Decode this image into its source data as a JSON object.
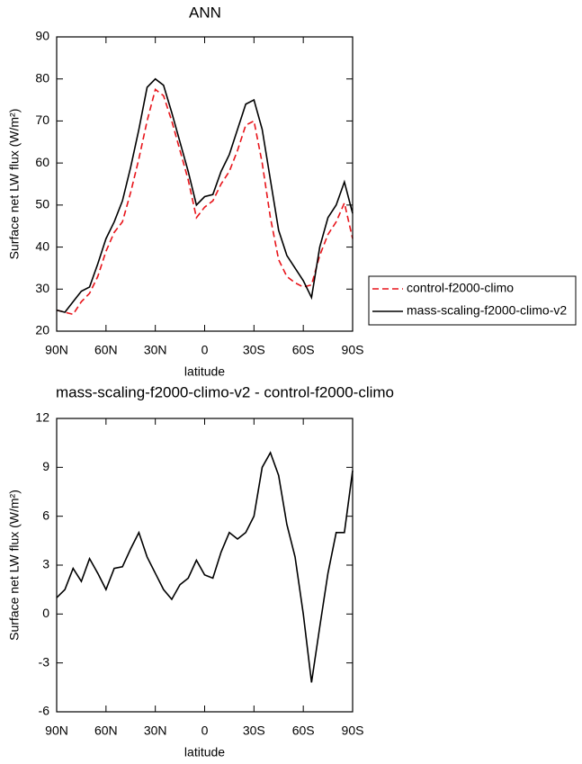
{
  "chart_data": [
    {
      "type": "line",
      "title": "ANN",
      "x_label": "latitude",
      "y_label": "Surface net LW flux (W/m²)",
      "x": [
        90,
        85,
        80,
        75,
        70,
        65,
        60,
        55,
        50,
        45,
        40,
        35,
        30,
        25,
        20,
        15,
        10,
        5,
        0,
        -5,
        -10,
        -15,
        -20,
        -25,
        -30,
        -35,
        -40,
        -45,
        -50,
        -55,
        -60,
        -65,
        -70,
        -75,
        -80,
        -85,
        -90
      ],
      "xlim": [
        90,
        -90
      ],
      "xticks": [
        {
          "value": 90,
          "label": "90N"
        },
        {
          "value": 60,
          "label": "60N"
        },
        {
          "value": 30,
          "label": "30N"
        },
        0,
        {
          "value": -30,
          "label": "30S"
        },
        {
          "value": -60,
          "label": "60S"
        },
        {
          "value": -90,
          "label": "90S"
        }
      ],
      "ylim": [
        20,
        90
      ],
      "yticks": [
        20,
        30,
        40,
        50,
        60,
        70,
        80,
        90
      ],
      "legend": "right",
      "series": [
        {
          "name": "control-f2000-climo",
          "color": "#e8141a",
          "dashed": true,
          "values": [
            25,
            24.5,
            24,
            27,
            29,
            33,
            39,
            43.5,
            46,
            53,
            61,
            70,
            77.5,
            76,
            70,
            63,
            56,
            47,
            49.5,
            51,
            55,
            58,
            63,
            69,
            70,
            60,
            47,
            37,
            33,
            31.5,
            30.5,
            31,
            38,
            43,
            46,
            50.5,
            42
          ]
        },
        {
          "name": "mass-scaling-f2000-climo-v2",
          "color": "#000000",
          "dashed": false,
          "values": [
            25,
            24.5,
            27,
            29.5,
            30.5,
            36,
            42,
            46,
            51,
            59,
            68,
            78,
            80,
            78.5,
            72,
            65,
            58,
            50,
            52,
            52.5,
            58,
            62,
            68,
            74,
            75,
            68,
            56,
            44,
            38,
            35,
            32,
            28,
            40,
            47,
            50,
            55.5,
            48
          ]
        }
      ]
    },
    {
      "type": "line",
      "title": "mass-scaling-f2000-climo-v2 - control-f2000-climo",
      "x_label": "latitude",
      "y_label": "Surface net LW flux (W/m²)",
      "x": [
        90,
        85,
        80,
        75,
        70,
        65,
        60,
        55,
        50,
        45,
        40,
        35,
        30,
        25,
        20,
        15,
        10,
        5,
        0,
        -5,
        -10,
        -15,
        -20,
        -25,
        -30,
        -35,
        -40,
        -45,
        -50,
        -55,
        -60,
        -65,
        -70,
        -75,
        -80,
        -85,
        -90
      ],
      "xlim": [
        90,
        -90
      ],
      "xticks": [
        {
          "value": 90,
          "label": "90N"
        },
        {
          "value": 60,
          "label": "60N"
        },
        {
          "value": 30,
          "label": "30N"
        },
        0,
        {
          "value": -30,
          "label": "30S"
        },
        {
          "value": -60,
          "label": "60S"
        },
        {
          "value": -90,
          "label": "90S"
        }
      ],
      "ylim": [
        -6,
        12
      ],
      "yticks": [
        -6,
        -3,
        0,
        3,
        6,
        9,
        12
      ],
      "color": "#000000",
      "values": [
        1,
        1.5,
        2.8,
        2,
        3.4,
        2.5,
        1.5,
        2.8,
        2.9,
        4,
        5,
        3.5,
        2.5,
        1.5,
        0.9,
        1.8,
        2.2,
        3.3,
        2.4,
        2.2,
        3.8,
        5,
        4.6,
        5,
        6,
        9,
        9.9,
        8.5,
        5.5,
        3.5,
        0,
        -4.2,
        -0.8,
        2.5,
        5,
        5,
        8.8
      ]
    }
  ]
}
